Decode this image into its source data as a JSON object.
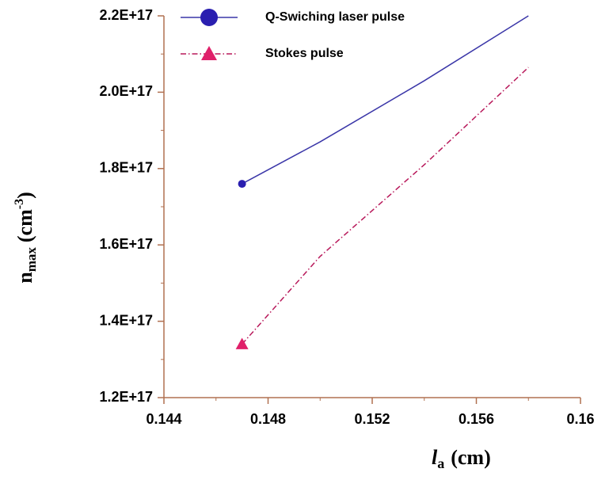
{
  "chart_data": {
    "type": "line",
    "x": [
      0.147,
      0.15,
      0.154,
      0.158
    ],
    "series": [
      {
        "name": "Q-Swiching laser pulse",
        "color": "#3a36a8",
        "marker_color": "#2a1fb0",
        "marker": "circle",
        "dash": "solid",
        "values": [
          1.76e+17,
          1.87e+17,
          2.03e+17,
          2.2e+17
        ]
      },
      {
        "name": "Stokes pulse",
        "color": "#b8185a",
        "marker_color": "#e0206a",
        "marker": "triangle",
        "dash": "dashdot",
        "values": [
          1.34e+17,
          1.57e+17,
          1.81e+17,
          2.065e+17
        ]
      }
    ],
    "xlim": [
      0.144,
      0.16
    ],
    "xticks": [
      0.144,
      0.148,
      0.152,
      0.156,
      0.16
    ],
    "xminorticks": [
      0.146,
      0.15,
      0.154,
      0.158
    ],
    "ylim": [
      1.2e+17,
      2.2e+17
    ],
    "yticks": [
      {
        "value": 1.2e+17,
        "label": "1.2E+17"
      },
      {
        "value": 1.4e+17,
        "label": "1.4E+17"
      },
      {
        "value": 1.6e+17,
        "label": "1.6E+17"
      },
      {
        "value": 1.8e+17,
        "label": "1.8E+17"
      },
      {
        "value": 2e+17,
        "label": "2.0E+17"
      },
      {
        "value": 2.2e+17,
        "label": "2.2E+17"
      }
    ],
    "yminorticks": [
      1.3e+17,
      1.5e+17,
      1.7e+17,
      1.9e+17,
      2.1e+17
    ],
    "ylabel": [
      "n",
      "max",
      "(cm",
      "-3",
      ")"
    ],
    "xlabel": [
      "l",
      "a",
      "(cm)"
    ],
    "axis_color": "#b07050",
    "legend": "upper left"
  }
}
